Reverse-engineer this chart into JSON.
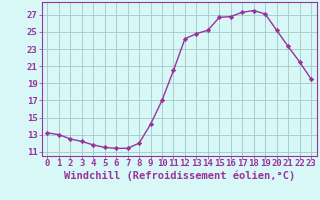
{
  "x": [
    0,
    1,
    2,
    3,
    4,
    5,
    6,
    7,
    8,
    9,
    10,
    11,
    12,
    13,
    14,
    15,
    16,
    17,
    18,
    19,
    20,
    21,
    22,
    23
  ],
  "y": [
    13.2,
    13.0,
    12.5,
    12.2,
    11.8,
    11.5,
    11.4,
    11.4,
    12.0,
    14.2,
    17.0,
    20.5,
    24.2,
    24.8,
    25.2,
    26.7,
    26.8,
    27.3,
    27.5,
    27.1,
    25.2,
    23.3,
    21.5,
    19.5
  ],
  "line_color": "#993399",
  "marker_color": "#993399",
  "bg_color": "#d8f8f8",
  "grid_color": "#a0c8c8",
  "axis_color": "#993399",
  "tick_color": "#993399",
  "xlabel": "Windchill (Refroidissement éolien,°C)",
  "xlim": [
    -0.5,
    23.5
  ],
  "ylim": [
    10.5,
    28.5
  ],
  "yticks": [
    11,
    13,
    15,
    17,
    19,
    21,
    23,
    25,
    27
  ],
  "xticks": [
    0,
    1,
    2,
    3,
    4,
    5,
    6,
    7,
    8,
    9,
    10,
    11,
    12,
    13,
    14,
    15,
    16,
    17,
    18,
    19,
    20,
    21,
    22,
    23
  ],
  "font_size": 6.5,
  "xlabel_font_size": 7.5
}
